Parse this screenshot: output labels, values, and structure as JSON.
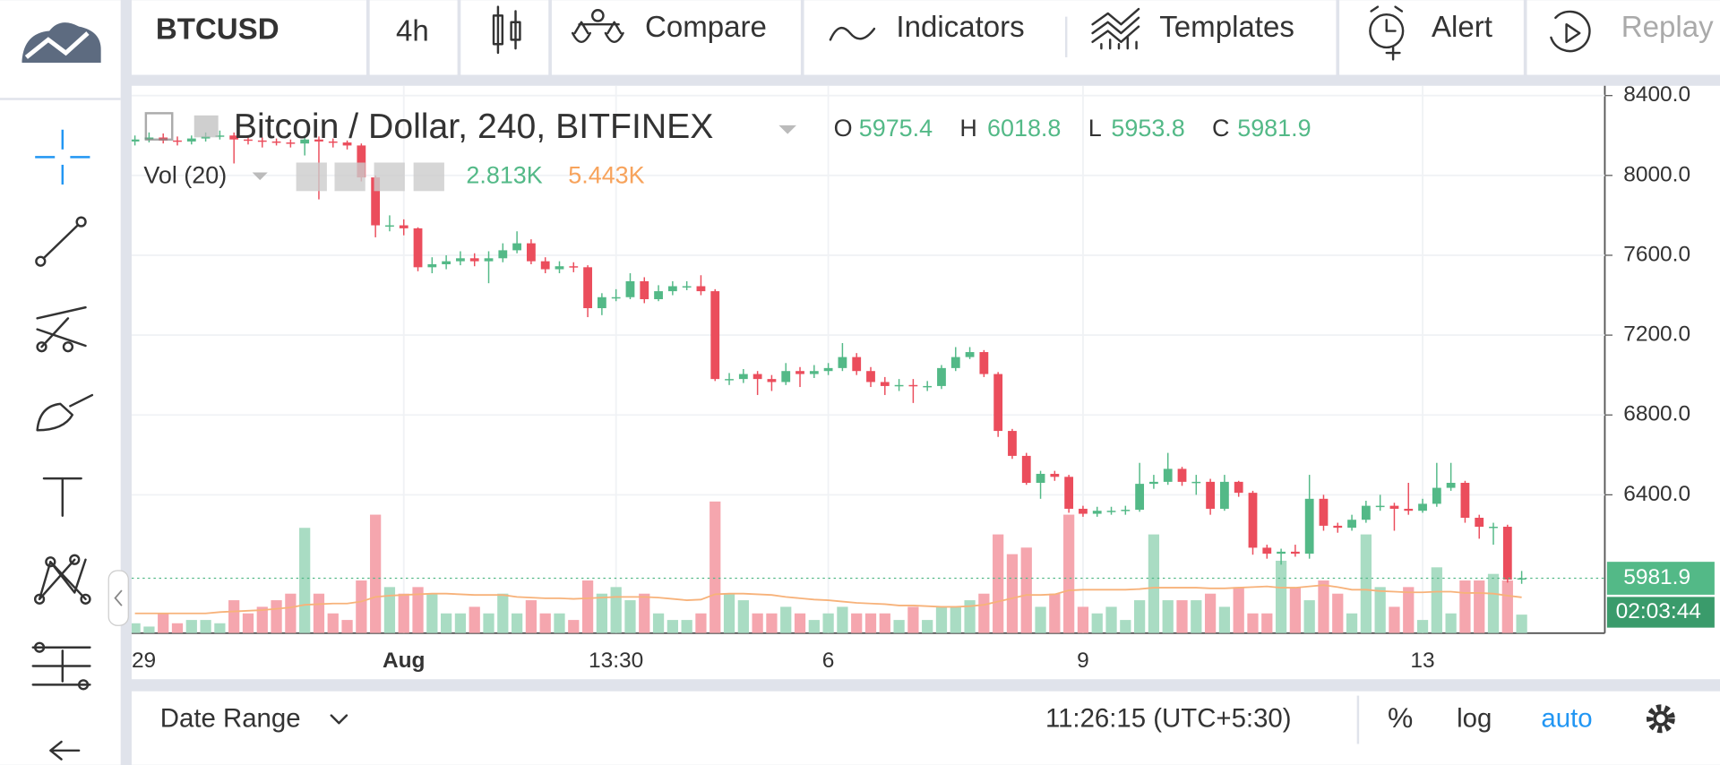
{
  "toolbar": {
    "symbol": "BTCUSD",
    "interval": "4h",
    "buttons": [
      "Compare",
      "Indicators",
      "Templates",
      "Alert",
      "Replay"
    ]
  },
  "legend": {
    "title": "Bitcoin / Dollar, 240, BITFINEX",
    "o": "O",
    "h": "H",
    "l": "L",
    "c": "C",
    "volume_title": "Vol (20)",
    "volume_label": "2.813K",
    "volume_ma_label": "5.443K"
  },
  "chart_data": {
    "type": "candlestick",
    "grid": true,
    "log_scale": false,
    "up_color": "#53b987",
    "down_color": "#eb4d5c",
    "volume_up_color": "#a9dcc3",
    "volume_down_color": "#f5a6ae",
    "ma_color": "#f7b27a",
    "ylim": [
      5707,
      8449
    ],
    "yticks": [
      {
        "value": 6400,
        "label": "6400.0"
      },
      {
        "value": 6800,
        "label": "6800.0"
      },
      {
        "value": 7200,
        "label": "7200.0"
      },
      {
        "value": 7600,
        "label": "7600.0"
      },
      {
        "value": 8000,
        "label": "8000.0"
      },
      {
        "value": 8400,
        "label": "8400.0"
      }
    ],
    "categories": [
      "29",
      null,
      null,
      null,
      null,
      null,
      null,
      null,
      null,
      null,
      null,
      null,
      null,
      null,
      null,
      null,
      null,
      null,
      null,
      "Aug",
      null,
      null,
      null,
      null,
      null,
      null,
      null,
      null,
      null,
      null,
      null,
      null,
      null,
      null,
      "13:30",
      null,
      null,
      null,
      null,
      null,
      null,
      null,
      null,
      null,
      null,
      null,
      null,
      null,
      null,
      "6",
      null,
      null,
      null,
      null,
      null,
      null,
      null,
      null,
      null,
      null,
      null,
      null,
      null,
      null,
      null,
      null,
      null,
      "9",
      null,
      null,
      null,
      null,
      null,
      null,
      null,
      null,
      null,
      null,
      null,
      null,
      null,
      null,
      null,
      null,
      null,
      null,
      null,
      null,
      null,
      null,
      null,
      "13",
      null,
      null,
      null,
      null,
      null,
      null,
      null
    ],
    "open": [
      8170,
      8180,
      8190,
      8175,
      8170,
      8185,
      8195,
      8200,
      8180,
      8175,
      8170,
      8165,
      8160,
      8180,
      8170,
      8165,
      8150,
      7990,
      7750,
      7750,
      7735,
      7540,
      7555,
      7570,
      7585,
      7570,
      7585,
      7625,
      7660,
      7570,
      7530,
      7545,
      7540,
      7335,
      7390,
      7390,
      7470,
      7380,
      7420,
      7445,
      7445,
      7420,
      6980,
      6980,
      7005,
      6980,
      6965,
      7020,
      7005,
      7020,
      7035,
      7090,
      7020,
      6965,
      6945,
      6950,
      6945,
      6945,
      7035,
      7090,
      7115,
      7005,
      6720,
      6595,
      6460,
      6505,
      6490,
      6330,
      6305,
      6320,
      6320,
      6325,
      6455,
      6465,
      6530,
      6465,
      6465,
      6330,
      6465,
      6410,
      6135,
      6105,
      6115,
      6105,
      6380,
      6245,
      6235,
      6275,
      6345,
      6345,
      6330,
      6320,
      6355,
      6435,
      6460,
      6285,
      6240,
      6240,
      5975.4
    ],
    "high": [
      8200,
      8215,
      8210,
      8195,
      8200,
      8215,
      8225,
      8215,
      8200,
      8190,
      8185,
      8180,
      8200,
      8195,
      8185,
      8175,
      8160,
      8000,
      7800,
      7780,
      7740,
      7590,
      7600,
      7620,
      7610,
      7620,
      7660,
      7720,
      7680,
      7590,
      7570,
      7565,
      7550,
      7410,
      7430,
      7510,
      7490,
      7450,
      7470,
      7470,
      7500,
      7430,
      7010,
      7030,
      7020,
      7000,
      7060,
      7040,
      7050,
      7060,
      7160,
      7110,
      7040,
      6990,
      6980,
      6980,
      6970,
      7050,
      7140,
      7140,
      7125,
      7015,
      6730,
      6610,
      6520,
      6520,
      6500,
      6345,
      6340,
      6340,
      6345,
      6560,
      6500,
      6610,
      6540,
      6500,
      6480,
      6500,
      6470,
      6420,
      6150,
      6130,
      6150,
      6500,
      6400,
      6260,
      6300,
      6370,
      6400,
      6360,
      6460,
      6380,
      6560,
      6560,
      6470,
      6300,
      6260,
      6250,
      6018.8
    ],
    "low": [
      8150,
      8165,
      8160,
      8150,
      8155,
      8170,
      8180,
      8060,
      8155,
      8140,
      8150,
      8140,
      8100,
      7880,
      8140,
      8130,
      7970,
      7690,
      7720,
      7700,
      7520,
      7510,
      7530,
      7550,
      7545,
      7460,
      7565,
      7610,
      7555,
      7510,
      7510,
      7515,
      7290,
      7300,
      7370,
      7380,
      7360,
      7370,
      7400,
      7425,
      7400,
      6970,
      6950,
      6960,
      6900,
      6920,
      6950,
      6940,
      6985,
      7000,
      7020,
      7000,
      6940,
      6900,
      6920,
      6860,
      6920,
      6930,
      7020,
      7080,
      6990,
      6690,
      6580,
      6450,
      6380,
      6470,
      6310,
      6290,
      6290,
      6300,
      6300,
      6315,
      6430,
      6450,
      6445,
      6400,
      6300,
      6320,
      6390,
      6100,
      6080,
      6050,
      6090,
      6080,
      6220,
      6210,
      6220,
      6260,
      6320,
      6220,
      6300,
      6310,
      6340,
      6420,
      6260,
      6180,
      6150,
      5960,
      5953.8
    ],
    "close": [
      8180,
      8190,
      8175,
      8170,
      8185,
      8195,
      8200,
      8180,
      8175,
      8170,
      8165,
      8160,
      8180,
      8170,
      8165,
      8150,
      7990,
      7750,
      7750,
      7735,
      7540,
      7555,
      7570,
      7585,
      7570,
      7585,
      7625,
      7660,
      7570,
      7530,
      7545,
      7540,
      7335,
      7390,
      7390,
      7470,
      7380,
      7420,
      7445,
      7445,
      7420,
      6980,
      6980,
      7005,
      6980,
      6965,
      7020,
      7005,
      7020,
      7035,
      7090,
      7020,
      6965,
      6945,
      6950,
      6945,
      6945,
      7035,
      7090,
      7115,
      7005,
      6720,
      6595,
      6460,
      6505,
      6490,
      6330,
      6305,
      6320,
      6320,
      6325,
      6455,
      6465,
      6530,
      6465,
      6465,
      6330,
      6465,
      6410,
      6135,
      6105,
      6115,
      6105,
      6380,
      6245,
      6235,
      6275,
      6345,
      6345,
      6330,
      6320,
      6355,
      6435,
      6460,
      6285,
      6240,
      6240,
      5975.4,
      5981.9
    ],
    "volume": [
      1.5,
      1,
      3,
      1.5,
      2,
      2,
      1.5,
      5,
      3,
      4,
      5,
      6,
      16,
      6,
      3,
      2,
      8,
      18,
      7,
      6,
      7,
      6,
      3,
      3,
      4,
      3,
      6,
      3,
      5,
      3,
      3,
      2,
      8,
      6,
      7,
      5,
      6,
      3,
      2,
      2,
      3,
      20,
      6,
      5,
      3,
      3,
      4,
      3,
      2,
      3,
      4,
      3,
      3,
      3,
      2,
      4,
      2,
      4,
      4,
      5,
      6,
      15,
      12,
      13,
      4,
      6,
      18,
      4,
      3,
      4,
      2,
      5,
      15,
      5,
      5,
      5,
      6,
      4,
      7,
      3,
      3,
      11,
      7,
      5,
      8,
      6,
      3,
      15,
      7,
      4,
      7,
      2,
      10,
      3,
      8,
      8,
      9,
      8,
      2.813
    ],
    "volume_ma": [
      3,
      3,
      3,
      3,
      3,
      3,
      3.2,
      3.3,
      3.4,
      3.5,
      3.7,
      3.9,
      4.3,
      4.4,
      4.5,
      4.5,
      4.8,
      5.5,
      5.7,
      5.8,
      5.9,
      6,
      6,
      5.9,
      5.8,
      5.8,
      5.8,
      5.5,
      5.4,
      5.3,
      5.3,
      5.2,
      5.3,
      5.4,
      5.5,
      5.5,
      5.5,
      5.4,
      5.2,
      5,
      5.1,
      5.9,
      6,
      6,
      5.9,
      5.8,
      5.5,
      5.3,
      5.1,
      5,
      4.8,
      4.6,
      4.5,
      4.4,
      4.2,
      4.2,
      4.1,
      4,
      4,
      4.1,
      4.3,
      4.8,
      5.3,
      5.8,
      5.8,
      5.9,
      6.5,
      6.6,
      6.6,
      6.6,
      6.6,
      6.7,
      6.9,
      6.9,
      6.9,
      6.9,
      6.8,
      6.8,
      6.9,
      7,
      7.1,
      6.9,
      6.9,
      7.1,
      7.3,
      7,
      6.6,
      6.6,
      6.4,
      6.3,
      6.2,
      6.2,
      6.3,
      6.3,
      6.1,
      6.1,
      6,
      5.7,
      5.443
    ],
    "countdown": "02:03:44"
  },
  "bottom_bar": {
    "date_range": "Date Range",
    "time": "11:26:15 (UTC+5:30)",
    "percent": "%",
    "log": "log",
    "auto": "auto"
  }
}
